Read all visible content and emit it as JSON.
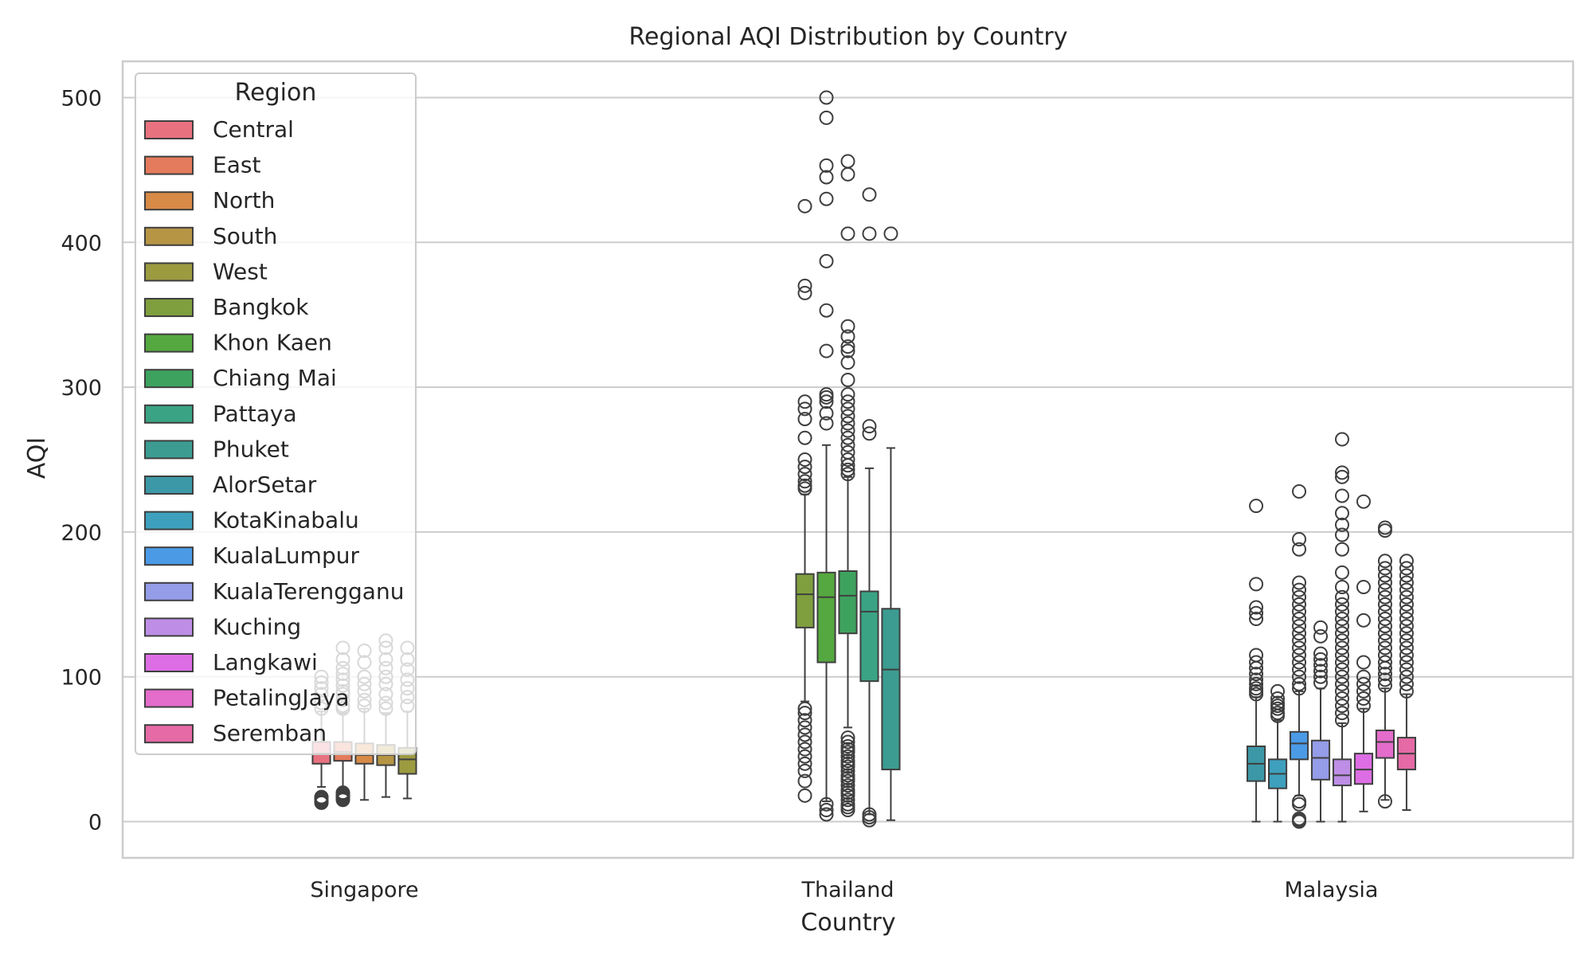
{
  "chart_data": {
    "type": "box",
    "title": "Regional AQI Distribution by Country",
    "xlabel": "Country",
    "ylabel": "AQI",
    "categories": [
      "Singapore",
      "Thailand",
      "Malaysia"
    ],
    "ylim": [
      -25,
      525
    ],
    "yticks": [
      0,
      100,
      200,
      300,
      400,
      500
    ],
    "grid": true,
    "legend": {
      "title": "Region",
      "placement": "top-left"
    },
    "colors": {
      "Central": "#e8717f",
      "East": "#e47b5c",
      "North": "#d88a47",
      "South": "#b69544",
      "West": "#9c9b40",
      "Bangkok": "#7f9f3e",
      "Khon Kaen": "#55a83f",
      "Chiang Mai": "#3ea25f",
      "Pattaya": "#3aa383",
      "Phuket": "#3c9c91",
      "AlorSetar": "#3c98a6",
      "KotaKinabalu": "#3ea0bd",
      "KualaLumpur": "#4a9ae6",
      "KualaTerengganu": "#959ce8",
      "Kuching": "#be8ee6",
      "Langkawi": "#dd6de4",
      "PetalingJaya": "#e46ccb",
      "Seremban": "#e56aa5"
    },
    "series": [
      {
        "name": "Central",
        "category": "Singapore",
        "stats": {
          "whislo": 24,
          "q1": 40,
          "med": 47,
          "q3": 55,
          "whishi": 76
        },
        "fliers": [
          13,
          14,
          15,
          16,
          17,
          78,
          82,
          88,
          92,
          96,
          100
        ]
      },
      {
        "name": "East",
        "category": "Singapore",
        "stats": {
          "whislo": 22,
          "q1": 42,
          "med": 48,
          "q3": 55,
          "whishi": 75
        },
        "fliers": [
          15,
          16,
          17,
          18,
          19,
          20,
          78,
          80,
          84,
          88,
          90,
          94,
          98,
          102,
          106,
          112,
          120
        ]
      },
      {
        "name": "North",
        "category": "Singapore",
        "stats": {
          "whislo": 15,
          "q1": 40,
          "med": 46,
          "q3": 54,
          "whishi": 78
        },
        "fliers": [
          80,
          84,
          90,
          95,
          100,
          110,
          118
        ]
      },
      {
        "name": "South",
        "category": "Singapore",
        "stats": {
          "whislo": 17,
          "q1": 39,
          "med": 46,
          "q3": 53,
          "whishi": 75
        },
        "fliers": [
          78,
          82,
          88,
          95,
          100,
          106,
          112,
          120,
          125
        ]
      },
      {
        "name": "West",
        "category": "Singapore",
        "stats": {
          "whislo": 16,
          "q1": 33,
          "med": 43,
          "q3": 51,
          "whishi": 76
        },
        "fliers": [
          80,
          86,
          92,
          98,
          105,
          112,
          120
        ]
      },
      {
        "name": "Bangkok",
        "category": "Thailand",
        "stats": {
          "whislo": 83,
          "q1": 134,
          "med": 157,
          "q3": 171,
          "whishi": 226
        },
        "fliers": [
          18,
          28,
          35,
          40,
          45,
          50,
          55,
          60,
          65,
          70,
          75,
          78,
          230,
          232,
          235,
          240,
          245,
          250,
          265,
          278,
          285,
          290,
          365,
          370,
          425
        ]
      },
      {
        "name": "Khon Kaen",
        "category": "Thailand",
        "stats": {
          "whislo": 14,
          "q1": 110,
          "med": 155,
          "q3": 172,
          "whishi": 260
        },
        "fliers": [
          5,
          8,
          12,
          275,
          282,
          290,
          293,
          295,
          325,
          353,
          387,
          430,
          445,
          453,
          486,
          500
        ]
      },
      {
        "name": "Chiang Mai",
        "category": "Thailand",
        "stats": {
          "whislo": 65,
          "q1": 130,
          "med": 156,
          "q3": 173,
          "whishi": 238
        },
        "fliers": [
          8,
          10,
          12,
          15,
          18,
          20,
          22,
          25,
          28,
          30,
          32,
          35,
          38,
          40,
          42,
          45,
          48,
          50,
          52,
          55,
          58,
          240,
          243,
          246,
          250,
          255,
          260,
          265,
          270,
          275,
          280,
          285,
          290,
          295,
          305,
          317,
          325,
          328,
          335,
          342,
          406,
          447,
          456
        ]
      },
      {
        "name": "Pattaya",
        "category": "Thailand",
        "stats": {
          "whislo": 5,
          "q1": 97,
          "med": 145,
          "q3": 159,
          "whishi": 244
        },
        "fliers": [
          1,
          3,
          5,
          268,
          273,
          406,
          433
        ]
      },
      {
        "name": "Phuket",
        "category": "Thailand",
        "stats": {
          "whislo": 1,
          "q1": 36,
          "med": 105,
          "q3": 147,
          "whishi": 258
        },
        "fliers": [
          406
        ]
      },
      {
        "name": "AlorSetar",
        "category": "Malaysia",
        "stats": {
          "whislo": 0,
          "q1": 28,
          "med": 40,
          "q3": 52,
          "whishi": 86
        },
        "fliers": [
          88,
          90,
          92,
          95,
          98,
          102,
          106,
          110,
          115,
          140,
          144,
          148,
          164,
          218
        ]
      },
      {
        "name": "KotaKinabalu",
        "category": "Malaysia",
        "stats": {
          "whislo": 0,
          "q1": 23,
          "med": 33,
          "q3": 43,
          "whishi": 70
        },
        "fliers": [
          73,
          75,
          78,
          80,
          82,
          85,
          90
        ]
      },
      {
        "name": "KualaLumpur",
        "category": "Malaysia",
        "stats": {
          "whislo": 18,
          "q1": 43,
          "med": 54,
          "q3": 62,
          "whishi": 90
        },
        "fliers": [
          0,
          1,
          2,
          12,
          14,
          92,
          95,
          100,
          105,
          110,
          115,
          120,
          125,
          130,
          135,
          140,
          145,
          150,
          155,
          160,
          165,
          188,
          195,
          228
        ]
      },
      {
        "name": "KualaTerengganu",
        "category": "Malaysia",
        "stats": {
          "whislo": 0,
          "q1": 29,
          "med": 44,
          "q3": 56,
          "whishi": 92
        },
        "fliers": [
          96,
          100,
          104,
          108,
          112,
          116,
          128,
          134
        ]
      },
      {
        "name": "Kuching",
        "category": "Malaysia",
        "stats": {
          "whislo": 0,
          "q1": 25,
          "med": 32,
          "q3": 43,
          "whishi": 68
        },
        "fliers": [
          70,
          75,
          80,
          85,
          90,
          95,
          100,
          105,
          110,
          115,
          120,
          125,
          130,
          135,
          140,
          145,
          150,
          155,
          162,
          172,
          188,
          198,
          205,
          213,
          225,
          238,
          241,
          264
        ]
      },
      {
        "name": "Langkawi",
        "category": "Malaysia",
        "stats": {
          "whislo": 7,
          "q1": 26,
          "med": 36,
          "q3": 47,
          "whishi": 78
        },
        "fliers": [
          80,
          85,
          90,
          95,
          100,
          110,
          139,
          162,
          221
        ]
      },
      {
        "name": "PetalingJaya",
        "category": "Malaysia",
        "stats": {
          "whislo": 15,
          "q1": 44,
          "med": 55,
          "q3": 63,
          "whishi": 92
        },
        "fliers": [
          14,
          94,
          98,
          102,
          106,
          110,
          115,
          120,
          125,
          130,
          135,
          140,
          145,
          150,
          155,
          160,
          165,
          170,
          175,
          180,
          201,
          203
        ]
      },
      {
        "name": "Seremban",
        "category": "Malaysia",
        "stats": {
          "whislo": 8,
          "q1": 36,
          "med": 47,
          "q3": 58,
          "whishi": 88
        },
        "fliers": [
          90,
          95,
          100,
          105,
          110,
          115,
          120,
          125,
          130,
          135,
          140,
          145,
          150,
          155,
          160,
          165,
          170,
          175,
          180
        ]
      }
    ]
  }
}
